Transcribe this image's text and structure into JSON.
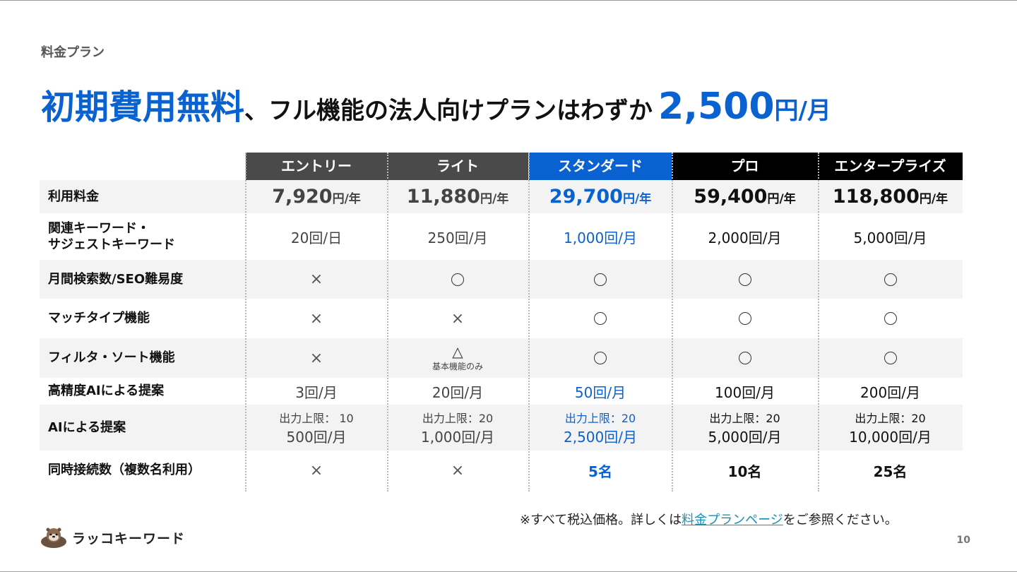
{
  "section_label": "料金プラン",
  "headline": {
    "lead": "初期費用無料",
    "rest": "、フル機能の法人向けプランはわずか",
    "price": "2,500",
    "unit": "円/月"
  },
  "colors": {
    "accent": "#0a62d0",
    "entry_header": "#4a4a4a",
    "lite_header": "#4a4a4a",
    "standard_header": "#0a62d0",
    "pro_header": "#000000",
    "enterprise_header": "#000000"
  },
  "plans": [
    "エントリー",
    "ライト",
    "スタンダード",
    "プロ",
    "エンタープライズ"
  ],
  "rows": {
    "price": {
      "label": "利用料金",
      "values": [
        {
          "amount": "7,920",
          "unit": "円/年"
        },
        {
          "amount": "11,880",
          "unit": "円/年"
        },
        {
          "amount": "29,700",
          "unit": "円/年"
        },
        {
          "amount": "59,400",
          "unit": "円/年"
        },
        {
          "amount": "118,800",
          "unit": "円/年"
        }
      ]
    },
    "keywords": {
      "label_line1": "関連キーワード・",
      "label_line2": "サジェストキーワード",
      "values": [
        "20回/日",
        "250回/月",
        "1,000回/月",
        "2,000回/月",
        "5,000回/月"
      ]
    },
    "volume": {
      "label": "月間検索数/SEO難易度",
      "values": [
        "×",
        "○",
        "○",
        "○",
        "○"
      ]
    },
    "match": {
      "label": "マッチタイプ機能",
      "values": [
        "×",
        "×",
        "○",
        "○",
        "○"
      ]
    },
    "filter": {
      "label": "フィルタ・ソート機能",
      "values": [
        "×",
        "△",
        "○",
        "○",
        "○"
      ],
      "lite_note": "基本機能のみ"
    },
    "hq_ai": {
      "label": "高精度AIによる提案",
      "values": [
        "3回/月",
        "20回/月",
        "50回/月",
        "100回/月",
        "200回/月"
      ]
    },
    "ai": {
      "label": "AIによる提案",
      "limits": [
        "出力上限： 10",
        "出力上限：20",
        "出力上限：20",
        "出力上限：20",
        "出力上限：20"
      ],
      "values": [
        "500回/月",
        "1,000回/月",
        "2,500回/月",
        "5,000回/月",
        "10,000回/月"
      ]
    },
    "concurrent": {
      "label": "同時接続数（複数名利用）",
      "values": [
        "×",
        "×",
        "5名",
        "10名",
        "25名"
      ]
    }
  },
  "footnote": {
    "prefix": "※すべて税込価格。詳しくは",
    "link": "料金プランページ",
    "suffix": "をご参照ください。"
  },
  "logo_text": "ラッコキーワード",
  "logo_icon": "sea-otter-icon",
  "page_number": "10"
}
